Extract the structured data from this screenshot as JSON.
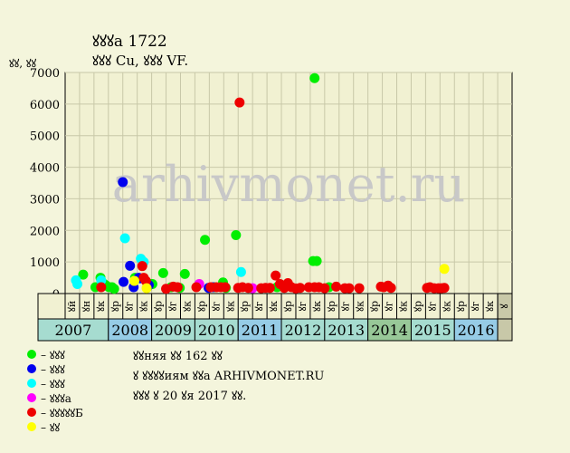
{
  "header": {
    "title": "ꙋꙋꙋа 1722",
    "subtitle": "ꙋꙋꙋ Cu, ꙋꙋꙋ VF.",
    "ylabel": "ꙋꙋ, ꙋꙋ"
  },
  "watermark": "arhivmonet.ru",
  "legend": [
    {
      "label": "– ꙋꙋꙋ",
      "color": "#00ee00"
    },
    {
      "label": "– ꙋꙋꙋ",
      "color": "#0000ee"
    },
    {
      "label": "– ꙋꙋꙋ",
      "color": "#00ffff"
    },
    {
      "label": "– ꙋꙋꙋа",
      "color": "#ff00ff"
    },
    {
      "label": "– ꙋꙋꙋꙋꙋБ",
      "color": "#ee0000"
    },
    {
      "label": "– ꙋꙋ",
      "color": "#ffff00"
    }
  ],
  "notes": [
    "ꙋꙋняя ꙋꙋ 162 ꙋꙋ",
    "ꙋ ꙋꙋꙋꙋиям ꙋꙋа ARHIVMONET.RU",
    "ꙋꙋꙋ ꙋ 20 ꙋя 2017 ꙋꙋ."
  ],
  "colors": {
    "background": "#f4f5dc",
    "plot_background": "#f1f1d2",
    "grid": "#c8c8a8",
    "year_band_odd": "#a6dcd0",
    "year_band_even": "#96cce6",
    "year_band_highlight": "#98c898",
    "last_period_cell": "#c8c8a8"
  },
  "chart_data": {
    "type": "scatter",
    "title": "ꙋꙋꙋа 1722",
    "subtitle": "ꙋꙋꙋ Cu, ꙋꙋꙋ VF.",
    "ylabel": "ꙋꙋ, ꙋꙋ",
    "xlabel": "",
    "ylim": [
      0,
      7000
    ],
    "yticks": [
      0,
      1000,
      2000,
      3000,
      4000,
      5000,
      6000,
      7000
    ],
    "grid": true,
    "x_unit": "period index (0 = first period of 2007; 3 periods per year)",
    "periods": [
      "ꙋй",
      "ꙋн",
      "ꙋк",
      "ꙋр",
      "ꙋг",
      "ꙋк",
      "ꙋр",
      "ꙋг",
      "ꙋк",
      "ꙋр",
      "ꙋг",
      "ꙋк",
      "ꙋр",
      "ꙋг",
      "ꙋк",
      "ꙋр",
      "ꙋг",
      "ꙋк",
      "ꙋр",
      "ꙋг",
      "ꙋк",
      "ꙋр",
      "ꙋг",
      "ꙋк",
      "ꙋр",
      "ꙋг",
      "ꙋк",
      "ꙋр",
      "ꙋг",
      "ꙋк",
      "ꙋ"
    ],
    "years": [
      {
        "label": "2007",
        "band": "odd"
      },
      {
        "label": "2008",
        "band": "even"
      },
      {
        "label": "2009",
        "band": "odd"
      },
      {
        "label": "2010",
        "band": "odd"
      },
      {
        "label": "2011",
        "band": "even"
      },
      {
        "label": "2012",
        "band": "odd"
      },
      {
        "label": "2013",
        "band": "odd"
      },
      {
        "label": "2014",
        "band": "highlight"
      },
      {
        "label": "2015",
        "band": "odd"
      },
      {
        "label": "2016",
        "band": "even"
      }
    ],
    "legend_position": "bottom-left",
    "series": [
      {
        "name": "– ꙋꙋꙋ",
        "color": "#00ee00",
        "points": [
          {
            "x": 0.75,
            "y": 600
          },
          {
            "x": 1.6,
            "y": 200
          },
          {
            "x": 1.95,
            "y": 500
          },
          {
            "x": 2.2,
            "y": 300
          },
          {
            "x": 2.35,
            "y": 250
          },
          {
            "x": 2.55,
            "y": 200
          },
          {
            "x": 2.75,
            "y": 200
          },
          {
            "x": 2.9,
            "y": 150
          },
          {
            "x": 4.35,
            "y": 500
          },
          {
            "x": 5.2,
            "y": 200
          },
          {
            "x": 5.45,
            "y": 300
          },
          {
            "x": 5.55,
            "y": 300
          },
          {
            "x": 6.3,
            "y": 650
          },
          {
            "x": 6.85,
            "y": 200
          },
          {
            "x": 7.45,
            "y": 180
          },
          {
            "x": 7.8,
            "y": 620
          },
          {
            "x": 9.2,
            "y": 1700
          },
          {
            "x": 9.85,
            "y": 200
          },
          {
            "x": 10.45,
            "y": 350
          },
          {
            "x": 10.65,
            "y": 180
          },
          {
            "x": 11.35,
            "y": 1850
          },
          {
            "x": 14.2,
            "y": 200
          },
          {
            "x": 16.8,
            "y": 6820
          },
          {
            "x": 16.7,
            "y": 1030
          },
          {
            "x": 16.95,
            "y": 1030
          },
          {
            "x": 17.8,
            "y": 200
          }
        ]
      },
      {
        "name": "– ꙋꙋꙋ",
        "color": "#0000ee",
        "points": [
          {
            "x": 3.5,
            "y": 3530
          },
          {
            "x": 3.55,
            "y": 370
          },
          {
            "x": 4.0,
            "y": 880
          },
          {
            "x": 4.25,
            "y": 200
          },
          {
            "x": 4.6,
            "y": 500
          },
          {
            "x": 4.7,
            "y": 480
          },
          {
            "x": 5.3,
            "y": 270
          },
          {
            "x": 9.45,
            "y": 180
          },
          {
            "x": 9.75,
            "y": 200
          }
        ]
      },
      {
        "name": "– ꙋꙋꙋ",
        "color": "#00ffff",
        "points": [
          {
            "x": 0.25,
            "y": 420
          },
          {
            "x": 0.35,
            "y": 300
          },
          {
            "x": 2.0,
            "y": 420
          },
          {
            "x": 3.65,
            "y": 1750
          },
          {
            "x": 4.75,
            "y": 1100
          },
          {
            "x": 4.95,
            "y": 1000
          },
          {
            "x": 11.7,
            "y": 680
          }
        ]
      },
      {
        "name": "– ꙋꙋꙋа",
        "color": "#ff00ff",
        "points": [
          {
            "x": 8.8,
            "y": 300
          },
          {
            "x": 12.5,
            "y": 170
          }
        ]
      },
      {
        "name": "– ꙋꙋꙋꙋꙋБ",
        "color": "#ee0000",
        "points": [
          {
            "x": 2.0,
            "y": 200
          },
          {
            "x": 4.85,
            "y": 870
          },
          {
            "x": 4.95,
            "y": 500
          },
          {
            "x": 5.1,
            "y": 400
          },
          {
            "x": 6.5,
            "y": 150
          },
          {
            "x": 7.0,
            "y": 220
          },
          {
            "x": 7.3,
            "y": 200
          },
          {
            "x": 8.6,
            "y": 200
          },
          {
            "x": 9.6,
            "y": 200
          },
          {
            "x": 10.0,
            "y": 200
          },
          {
            "x": 10.3,
            "y": 200
          },
          {
            "x": 10.6,
            "y": 200
          },
          {
            "x": 11.5,
            "y": 180
          },
          {
            "x": 11.6,
            "y": 6050
          },
          {
            "x": 11.8,
            "y": 200
          },
          {
            "x": 12.2,
            "y": 180
          },
          {
            "x": 13.1,
            "y": 170
          },
          {
            "x": 13.4,
            "y": 180
          },
          {
            "x": 13.7,
            "y": 180
          },
          {
            "x": 14.1,
            "y": 570
          },
          {
            "x": 14.4,
            "y": 300
          },
          {
            "x": 14.7,
            "y": 180
          },
          {
            "x": 14.95,
            "y": 330
          },
          {
            "x": 15.2,
            "y": 200
          },
          {
            "x": 15.5,
            "y": 160
          },
          {
            "x": 15.8,
            "y": 180
          },
          {
            "x": 16.4,
            "y": 200
          },
          {
            "x": 16.8,
            "y": 200
          },
          {
            "x": 17.1,
            "y": 200
          },
          {
            "x": 17.5,
            "y": 170
          },
          {
            "x": 18.3,
            "y": 220
          },
          {
            "x": 18.9,
            "y": 170
          },
          {
            "x": 19.2,
            "y": 170
          },
          {
            "x": 19.9,
            "y": 170
          },
          {
            "x": 21.4,
            "y": 220
          },
          {
            "x": 21.6,
            "y": 200
          },
          {
            "x": 21.9,
            "y": 250
          },
          {
            "x": 22.1,
            "y": 180
          },
          {
            "x": 24.6,
            "y": 180
          },
          {
            "x": 24.8,
            "y": 200
          },
          {
            "x": 25.1,
            "y": 170
          },
          {
            "x": 25.4,
            "y": 170
          },
          {
            "x": 25.6,
            "y": 170
          },
          {
            "x": 25.8,
            "y": 180
          }
        ]
      },
      {
        "name": "– ꙋꙋ",
        "color": "#ffff00",
        "points": [
          {
            "x": 4.3,
            "y": 400
          },
          {
            "x": 5.15,
            "y": 170
          },
          {
            "x": 25.8,
            "y": 780
          }
        ]
      }
    ]
  }
}
